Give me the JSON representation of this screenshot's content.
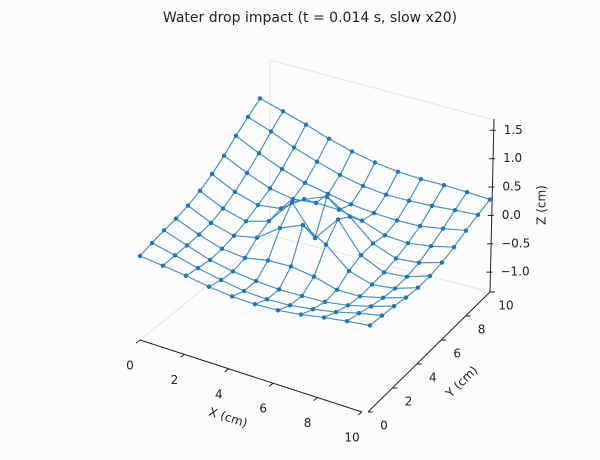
{
  "chart_data": {
    "type": "scatter3d",
    "title": "Water drop impact (t = 0.014 s, slow x20)",
    "xlabel": "X (cm)",
    "ylabel": "Y (cm)",
    "zlabel": "Z (cm)",
    "color": "#1f77b4",
    "x": [
      0,
      1,
      2,
      3,
      4,
      5,
      6,
      7,
      8,
      9,
      10
    ],
    "y": [
      0,
      1,
      2,
      3,
      4,
      5,
      6,
      7,
      8,
      9,
      10
    ],
    "z": [
      [
        -0.5,
        -0.57,
        -0.65,
        -0.75,
        -0.82,
        -0.85,
        -0.84,
        -0.79,
        -0.71,
        -0.65,
        -0.6
      ],
      [
        -0.41,
        -0.54,
        -0.68,
        -0.8,
        -0.9,
        -0.94,
        -0.93,
        -0.87,
        -0.79,
        -0.67,
        -0.58
      ],
      [
        -0.33,
        -0.52,
        -0.7,
        -0.81,
        -0.88,
        -0.92,
        -0.92,
        -0.91,
        -0.84,
        -0.72,
        -0.57
      ],
      [
        -0.27,
        -0.48,
        -0.65,
        -0.71,
        -0.62,
        -0.61,
        -0.69,
        -0.84,
        -0.84,
        -0.73,
        -0.58
      ],
      [
        -0.18,
        -0.42,
        -0.56,
        -0.46,
        -0.1,
        0.11,
        -0.18,
        -0.62,
        -0.78,
        -0.72,
        -0.56
      ],
      [
        -0.05,
        -0.3,
        -0.44,
        -0.29,
        0.27,
        -0.38,
        0.18,
        -0.47,
        -0.71,
        -0.66,
        -0.5
      ],
      [
        0.12,
        -0.13,
        -0.28,
        -0.21,
        0.14,
        0.34,
        0.04,
        -0.41,
        -0.6,
        -0.55,
        -0.4
      ],
      [
        0.33,
        0.09,
        -0.11,
        -0.2,
        -0.14,
        -0.15,
        -0.25,
        -0.43,
        -0.46,
        -0.38,
        -0.26
      ],
      [
        0.57,
        0.33,
        0.12,
        -0.04,
        -0.14,
        -0.23,
        -0.28,
        -0.3,
        -0.28,
        -0.19,
        -0.09
      ],
      [
        0.79,
        0.61,
        0.4,
        0.23,
        0.08,
        -0.02,
        -0.07,
        -0.06,
        -0.03,
        0.02,
        0.06
      ],
      [
        1.0,
        0.86,
        0.71,
        0.54,
        0.4,
        0.3,
        0.24,
        0.22,
        0.23,
        0.22,
        0.2
      ]
    ],
    "xlim": [
      0,
      10
    ],
    "ylim": [
      0,
      10
    ],
    "zlim": [
      -1.35,
      1.7
    ],
    "xticks": [
      0,
      2,
      4,
      6,
      8,
      10
    ],
    "yticks": [
      0,
      2,
      4,
      6,
      8,
      10
    ],
    "zticks": [
      {
        "value": -1,
        "label": "−1.0"
      },
      {
        "value": -0.5,
        "label": "−0.5"
      },
      {
        "value": 0,
        "label": "0.0"
      },
      0.5,
      {
        "value": 1,
        "label": "1.0"
      },
      1.5
    ]
  }
}
